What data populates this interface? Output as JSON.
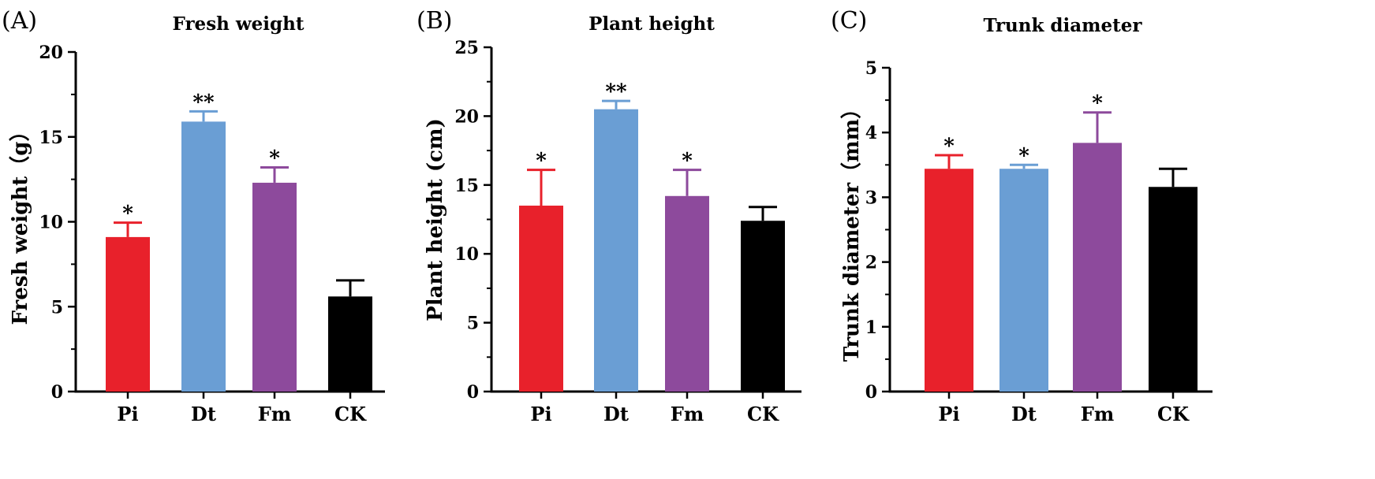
{
  "chart_data": [
    {
      "type": "bar",
      "panel_label": "(A)",
      "title": "Fresh weight",
      "ylabel": "Fresh weight（g）",
      "xlabel": "",
      "categories": [
        "Pi",
        "Dt",
        "Fm",
        "CK"
      ],
      "values": [
        9.1,
        15.9,
        12.3,
        5.6
      ],
      "errors": [
        0.85,
        0.6,
        0.9,
        0.95
      ],
      "significance": [
        "*",
        "**",
        "*",
        ""
      ],
      "colors": [
        "#e8212b",
        "#6a9ed4",
        "#8d4a9c",
        "#000000"
      ],
      "ylim": [
        0,
        20
      ],
      "yticks": [
        0,
        5,
        10,
        15,
        20
      ],
      "grid": false
    },
    {
      "type": "bar",
      "panel_label": "(B)",
      "title": "Plant height",
      "ylabel": "Plant height (cm)",
      "xlabel": "",
      "categories": [
        "Pi",
        "Dt",
        "Fm",
        "CK"
      ],
      "values": [
        13.5,
        20.5,
        14.2,
        12.4
      ],
      "errors": [
        2.6,
        0.6,
        1.9,
        1.0
      ],
      "significance": [
        "*",
        "**",
        "*",
        ""
      ],
      "colors": [
        "#e8212b",
        "#6a9ed4",
        "#8d4a9c",
        "#000000"
      ],
      "ylim": [
        0,
        25
      ],
      "yticks": [
        0,
        5,
        10,
        15,
        20,
        25
      ],
      "grid": false
    },
    {
      "type": "bar",
      "panel_label": "(C)",
      "title": "Trunk diameter",
      "ylabel": "Trunk diameter（mm）",
      "xlabel": "",
      "categories": [
        "Pi",
        "Dt",
        "Fm",
        "CK"
      ],
      "values": [
        3.44,
        3.44,
        3.84,
        3.16
      ],
      "errors": [
        0.21,
        0.06,
        0.47,
        0.28
      ],
      "significance": [
        "*",
        "*",
        "*",
        ""
      ],
      "colors": [
        "#e8212b",
        "#6a9ed4",
        "#8d4a9c",
        "#000000"
      ],
      "ylim": [
        0,
        5
      ],
      "yticks": [
        0,
        1,
        2,
        3,
        4,
        5
      ],
      "grid": false
    }
  ]
}
